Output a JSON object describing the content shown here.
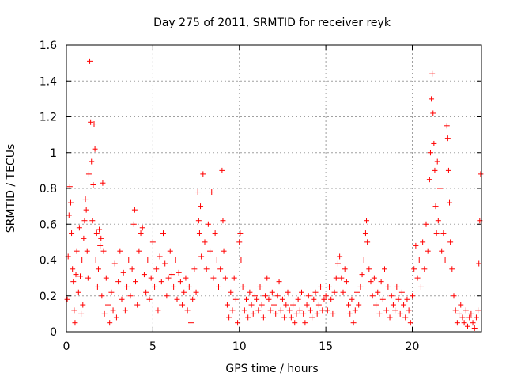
{
  "chart_data": {
    "type": "scatter",
    "title": "Day 275 of 2011, SRMTID for receiver reyk",
    "xlabel": "GPS time / hours",
    "ylabel": "SRMTID / TECUs",
    "xlim": [
      0,
      24
    ],
    "ylim": [
      0,
      1.6
    ],
    "xticks": [
      0,
      5,
      10,
      15,
      20
    ],
    "xtick_labels": [
      "0",
      "5",
      "10",
      "15",
      "20"
    ],
    "yticks": [
      0,
      0.2,
      0.4,
      0.6,
      0.8,
      1.0,
      1.2,
      1.4,
      1.6
    ],
    "ytick_labels": [
      "0",
      "0.2",
      "0.4",
      "0.6",
      "0.8",
      "1",
      "1.2",
      "1.4",
      "1.6"
    ],
    "grid": true,
    "marker": "+",
    "color": "#ff0000",
    "series": [
      {
        "name": "SRMTID",
        "points": [
          [
            0.05,
            0.18
          ],
          [
            0.1,
            0.42
          ],
          [
            0.15,
            0.65
          ],
          [
            0.2,
            0.81
          ],
          [
            0.25,
            0.72
          ],
          [
            0.3,
            0.55
          ],
          [
            0.35,
            0.35
          ],
          [
            0.4,
            0.28
          ],
          [
            0.45,
            0.12
          ],
          [
            0.5,
            0.05
          ],
          [
            0.55,
            0.32
          ],
          [
            0.6,
            0.45
          ],
          [
            0.7,
            0.22
          ],
          [
            0.75,
            0.58
          ],
          [
            0.8,
            0.31
          ],
          [
            0.85,
            0.1
          ],
          [
            0.9,
            0.4
          ],
          [
            0.95,
            0.15
          ],
          [
            1.0,
            0.52
          ],
          [
            1.05,
            0.62
          ],
          [
            1.1,
            0.74
          ],
          [
            1.15,
            0.68
          ],
          [
            1.2,
            0.45
          ],
          [
            1.25,
            0.3
          ],
          [
            1.3,
            0.88
          ],
          [
            1.35,
            1.51
          ],
          [
            1.4,
            1.17
          ],
          [
            1.45,
            0.95
          ],
          [
            1.5,
            0.62
          ],
          [
            1.55,
            0.82
          ],
          [
            1.6,
            1.16
          ],
          [
            1.65,
            1.02
          ],
          [
            1.7,
            0.4
          ],
          [
            1.75,
            0.55
          ],
          [
            1.8,
            0.25
          ],
          [
            1.85,
            0.35
          ],
          [
            1.9,
            0.57
          ],
          [
            1.95,
            0.48
          ],
          [
            2.0,
            0.52
          ],
          [
            2.05,
            0.2
          ],
          [
            2.1,
            0.83
          ],
          [
            2.15,
            0.45
          ],
          [
            2.2,
            0.1
          ],
          [
            2.3,
            0.3
          ],
          [
            2.4,
            0.15
          ],
          [
            2.5,
            0.05
          ],
          [
            2.6,
            0.22
          ],
          [
            2.7,
            0.12
          ],
          [
            2.8,
            0.38
          ],
          [
            2.9,
            0.08
          ],
          [
            3.0,
            0.28
          ],
          [
            3.1,
            0.45
          ],
          [
            3.2,
            0.18
          ],
          [
            3.3,
            0.33
          ],
          [
            3.4,
            0.12
          ],
          [
            3.5,
            0.25
          ],
          [
            3.6,
            0.4
          ],
          [
            3.7,
            0.2
          ],
          [
            3.8,
            0.35
          ],
          [
            3.9,
            0.6
          ],
          [
            3.95,
            0.68
          ],
          [
            4.0,
            0.28
          ],
          [
            4.1,
            0.15
          ],
          [
            4.2,
            0.45
          ],
          [
            4.3,
            0.55
          ],
          [
            4.4,
            0.58
          ],
          [
            4.5,
            0.32
          ],
          [
            4.6,
            0.22
          ],
          [
            4.7,
            0.4
          ],
          [
            4.8,
            0.18
          ],
          [
            4.9,
            0.3
          ],
          [
            5.0,
            0.5
          ],
          [
            5.1,
            0.25
          ],
          [
            5.2,
            0.35
          ],
          [
            5.3,
            0.12
          ],
          [
            5.4,
            0.42
          ],
          [
            5.5,
            0.28
          ],
          [
            5.6,
            0.55
          ],
          [
            5.7,
            0.38
          ],
          [
            5.8,
            0.2
          ],
          [
            5.9,
            0.3
          ],
          [
            6.0,
            0.45
          ],
          [
            6.1,
            0.32
          ],
          [
            6.2,
            0.25
          ],
          [
            6.3,
            0.4
          ],
          [
            6.4,
            0.18
          ],
          [
            6.5,
            0.33
          ],
          [
            6.6,
            0.28
          ],
          [
            6.7,
            0.15
          ],
          [
            6.8,
            0.22
          ],
          [
            6.9,
            0.3
          ],
          [
            7.0,
            0.12
          ],
          [
            7.1,
            0.25
          ],
          [
            7.2,
            0.05
          ],
          [
            7.3,
            0.18
          ],
          [
            7.4,
            0.35
          ],
          [
            7.5,
            0.22
          ],
          [
            7.6,
            0.78
          ],
          [
            7.65,
            0.62
          ],
          [
            7.7,
            0.55
          ],
          [
            7.75,
            0.7
          ],
          [
            7.8,
            0.42
          ],
          [
            7.9,
            0.88
          ],
          [
            8.0,
            0.5
          ],
          [
            8.1,
            0.35
          ],
          [
            8.2,
            0.6
          ],
          [
            8.3,
            0.45
          ],
          [
            8.4,
            0.78
          ],
          [
            8.5,
            0.3
          ],
          [
            8.6,
            0.55
          ],
          [
            8.7,
            0.4
          ],
          [
            8.8,
            0.25
          ],
          [
            8.9,
            0.35
          ],
          [
            9.0,
            0.9
          ],
          [
            9.05,
            0.62
          ],
          [
            9.1,
            0.45
          ],
          [
            9.2,
            0.3
          ],
          [
            9.3,
            0.15
          ],
          [
            9.4,
            0.08
          ],
          [
            9.5,
            0.22
          ],
          [
            9.6,
            0.12
          ],
          [
            9.7,
            0.3
          ],
          [
            9.8,
            0.18
          ],
          [
            9.9,
            0.05
          ],
          [
            10.0,
            0.5
          ],
          [
            10.05,
            0.55
          ],
          [
            10.1,
            0.4
          ],
          [
            10.2,
            0.25
          ],
          [
            10.3,
            0.12
          ],
          [
            10.4,
            0.18
          ],
          [
            10.5,
            0.08
          ],
          [
            10.6,
            0.22
          ],
          [
            10.7,
            0.15
          ],
          [
            10.8,
            0.1
          ],
          [
            10.9,
            0.2
          ],
          [
            11.0,
            0.18
          ],
          [
            11.1,
            0.12
          ],
          [
            11.2,
            0.25
          ],
          [
            11.3,
            0.15
          ],
          [
            11.4,
            0.08
          ],
          [
            11.5,
            0.2
          ],
          [
            11.6,
            0.3
          ],
          [
            11.7,
            0.18
          ],
          [
            11.8,
            0.12
          ],
          [
            11.9,
            0.22
          ],
          [
            12.0,
            0.15
          ],
          [
            12.1,
            0.1
          ],
          [
            12.2,
            0.2
          ],
          [
            12.3,
            0.28
          ],
          [
            12.4,
            0.12
          ],
          [
            12.5,
            0.18
          ],
          [
            12.6,
            0.08
          ],
          [
            12.7,
            0.15
          ],
          [
            12.8,
            0.22
          ],
          [
            12.9,
            0.12
          ],
          [
            13.0,
            0.08
          ],
          [
            13.1,
            0.15
          ],
          [
            13.2,
            0.05
          ],
          [
            13.3,
            0.1
          ],
          [
            13.4,
            0.18
          ],
          [
            13.5,
            0.12
          ],
          [
            13.6,
            0.22
          ],
          [
            13.7,
            0.1
          ],
          [
            13.8,
            0.05
          ],
          [
            13.9,
            0.15
          ],
          [
            14.0,
            0.2
          ],
          [
            14.1,
            0.12
          ],
          [
            14.2,
            0.08
          ],
          [
            14.3,
            0.18
          ],
          [
            14.4,
            0.22
          ],
          [
            14.5,
            0.1
          ],
          [
            14.6,
            0.15
          ],
          [
            14.7,
            0.25
          ],
          [
            14.8,
            0.12
          ],
          [
            14.9,
            0.18
          ],
          [
            15.0,
            0.2
          ],
          [
            15.1,
            0.12
          ],
          [
            15.2,
            0.25
          ],
          [
            15.3,
            0.18
          ],
          [
            15.4,
            0.1
          ],
          [
            15.5,
            0.22
          ],
          [
            15.6,
            0.3
          ],
          [
            15.7,
            0.38
          ],
          [
            15.8,
            0.42
          ],
          [
            15.9,
            0.3
          ],
          [
            16.0,
            0.22
          ],
          [
            16.1,
            0.35
          ],
          [
            16.2,
            0.28
          ],
          [
            16.3,
            0.15
          ],
          [
            16.4,
            0.1
          ],
          [
            16.5,
            0.18
          ],
          [
            16.6,
            0.05
          ],
          [
            16.7,
            0.12
          ],
          [
            16.8,
            0.22
          ],
          [
            16.9,
            0.15
          ],
          [
            17.0,
            0.25
          ],
          [
            17.1,
            0.32
          ],
          [
            17.2,
            0.4
          ],
          [
            17.3,
            0.55
          ],
          [
            17.35,
            0.62
          ],
          [
            17.4,
            0.5
          ],
          [
            17.5,
            0.35
          ],
          [
            17.6,
            0.28
          ],
          [
            17.7,
            0.2
          ],
          [
            17.8,
            0.3
          ],
          [
            17.9,
            0.15
          ],
          [
            18.0,
            0.22
          ],
          [
            18.1,
            0.1
          ],
          [
            18.2,
            0.28
          ],
          [
            18.3,
            0.18
          ],
          [
            18.4,
            0.35
          ],
          [
            18.5,
            0.12
          ],
          [
            18.6,
            0.25
          ],
          [
            18.7,
            0.08
          ],
          [
            18.8,
            0.2
          ],
          [
            18.9,
            0.15
          ],
          [
            19.0,
            0.12
          ],
          [
            19.1,
            0.25
          ],
          [
            19.2,
            0.18
          ],
          [
            19.3,
            0.1
          ],
          [
            19.4,
            0.22
          ],
          [
            19.5,
            0.15
          ],
          [
            19.6,
            0.08
          ],
          [
            19.7,
            0.18
          ],
          [
            19.8,
            0.12
          ],
          [
            19.9,
            0.05
          ],
          [
            20.0,
            0.2
          ],
          [
            20.1,
            0.35
          ],
          [
            20.2,
            0.48
          ],
          [
            20.3,
            0.3
          ],
          [
            20.4,
            0.4
          ],
          [
            20.5,
            0.25
          ],
          [
            20.6,
            0.5
          ],
          [
            20.7,
            0.35
          ],
          [
            20.8,
            0.6
          ],
          [
            20.9,
            0.45
          ],
          [
            21.0,
            0.85
          ],
          [
            21.05,
            1.0
          ],
          [
            21.1,
            1.3
          ],
          [
            21.15,
            1.44
          ],
          [
            21.2,
            1.22
          ],
          [
            21.25,
            1.05
          ],
          [
            21.3,
            0.9
          ],
          [
            21.35,
            0.7
          ],
          [
            21.4,
            0.55
          ],
          [
            21.45,
            0.95
          ],
          [
            21.5,
            0.62
          ],
          [
            21.6,
            0.8
          ],
          [
            21.7,
            0.45
          ],
          [
            21.8,
            0.55
          ],
          [
            21.9,
            0.4
          ],
          [
            22.0,
            1.15
          ],
          [
            22.05,
            1.08
          ],
          [
            22.1,
            0.9
          ],
          [
            22.15,
            0.72
          ],
          [
            22.2,
            0.5
          ],
          [
            22.3,
            0.35
          ],
          [
            22.4,
            0.2
          ],
          [
            22.5,
            0.12
          ],
          [
            22.6,
            0.05
          ],
          [
            22.7,
            0.1
          ],
          [
            22.8,
            0.15
          ],
          [
            22.9,
            0.08
          ],
          [
            23.0,
            0.05
          ],
          [
            23.1,
            0.12
          ],
          [
            23.2,
            0.03
          ],
          [
            23.3,
            0.08
          ],
          [
            23.4,
            0.1
          ],
          [
            23.5,
            0.05
          ],
          [
            23.6,
            0.02
          ],
          [
            23.7,
            0.08
          ],
          [
            23.8,
            0.12
          ],
          [
            23.9,
            0.62
          ],
          [
            23.95,
            0.88
          ],
          [
            23.85,
            0.38
          ]
        ]
      }
    ]
  }
}
